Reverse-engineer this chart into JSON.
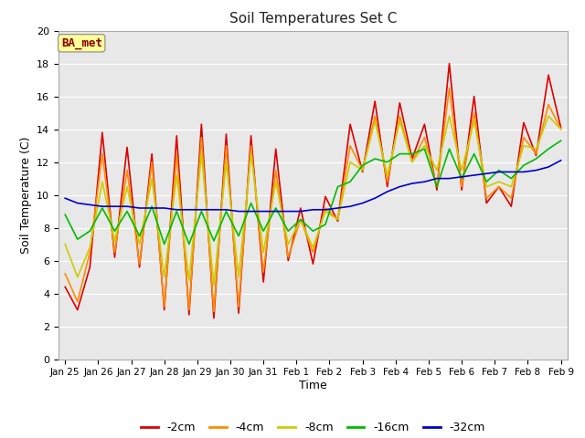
{
  "title": "Soil Temperatures Set C",
  "xlabel": "Time",
  "ylabel": "Soil Temperature (C)",
  "ylim": [
    0,
    20
  ],
  "yticks": [
    0,
    2,
    4,
    6,
    8,
    10,
    12,
    14,
    16,
    18,
    20
  ],
  "fig_bg_color": "#ffffff",
  "plot_bg_color": "#e8e8e8",
  "annotation_text": "BA_met",
  "annotation_color": "#8b0000",
  "annotation_bg": "#ffff99",
  "colors": {
    "-2cm": "#dd0000",
    "-4cm": "#ff8c00",
    "-8cm": "#cccc00",
    "-16cm": "#00bb00",
    "-32cm": "#0000cc"
  },
  "x_tick_labels": [
    "Jan 25",
    "Jan 26",
    "Jan 27",
    "Jan 28",
    "Jan 29",
    "Jan 30",
    "Jan 31",
    "Feb 1",
    "Feb 2",
    "Feb 3",
    "Feb 4",
    "Feb 5",
    "Feb 6",
    "Feb 7",
    "Feb 8",
    "Feb 9"
  ],
  "series": {
    "-2cm": [
      4.4,
      3.0,
      5.6,
      13.8,
      6.2,
      12.9,
      5.6,
      12.5,
      3.0,
      13.6,
      2.7,
      14.3,
      2.5,
      13.7,
      2.8,
      13.6,
      4.7,
      12.8,
      6.0,
      9.2,
      5.8,
      9.9,
      8.4,
      14.3,
      11.4,
      15.7,
      10.5,
      15.6,
      12.2,
      14.3,
      10.3,
      18.0,
      10.3,
      16.0,
      9.5,
      10.5,
      9.3,
      14.4,
      12.4,
      17.3,
      14.1
    ],
    "-4cm": [
      5.2,
      3.5,
      6.5,
      12.5,
      6.5,
      11.5,
      5.8,
      12.0,
      3.2,
      12.5,
      3.0,
      13.5,
      2.9,
      13.0,
      3.2,
      13.0,
      5.3,
      11.5,
      6.2,
      8.5,
      6.5,
      9.2,
      8.5,
      13.0,
      11.5,
      14.8,
      10.8,
      14.8,
      12.0,
      13.5,
      10.5,
      16.5,
      10.5,
      15.0,
      9.8,
      10.5,
      9.8,
      13.5,
      12.5,
      15.5,
      14.0
    ],
    "-8cm": [
      7.0,
      5.0,
      6.8,
      10.8,
      7.2,
      10.5,
      7.0,
      11.0,
      5.0,
      11.2,
      4.8,
      12.5,
      4.5,
      12.0,
      5.0,
      12.5,
      6.5,
      10.8,
      7.0,
      8.5,
      6.8,
      9.0,
      8.5,
      12.0,
      11.5,
      14.5,
      11.2,
      14.5,
      12.0,
      13.0,
      11.5,
      14.8,
      11.5,
      14.5,
      10.5,
      10.8,
      10.5,
      13.0,
      12.8,
      14.8,
      14.0
    ],
    "-16cm": [
      8.8,
      7.3,
      7.8,
      9.2,
      7.8,
      9.0,
      7.5,
      9.3,
      7.0,
      9.0,
      7.0,
      9.0,
      7.2,
      9.0,
      7.5,
      9.5,
      7.8,
      9.2,
      7.8,
      8.5,
      7.8,
      8.2,
      10.5,
      10.8,
      11.8,
      12.2,
      12.0,
      12.5,
      12.5,
      12.8,
      10.5,
      12.8,
      11.0,
      12.5,
      10.8,
      11.5,
      11.0,
      11.8,
      12.2,
      12.8,
      13.3
    ],
    "-32cm": [
      9.8,
      9.5,
      9.4,
      9.3,
      9.3,
      9.3,
      9.2,
      9.2,
      9.2,
      9.1,
      9.1,
      9.1,
      9.1,
      9.1,
      9.0,
      9.0,
      9.0,
      9.0,
      9.0,
      9.0,
      9.1,
      9.1,
      9.2,
      9.3,
      9.5,
      9.8,
      10.2,
      10.5,
      10.7,
      10.8,
      11.0,
      11.0,
      11.1,
      11.2,
      11.3,
      11.4,
      11.4,
      11.4,
      11.5,
      11.7,
      12.1
    ]
  }
}
